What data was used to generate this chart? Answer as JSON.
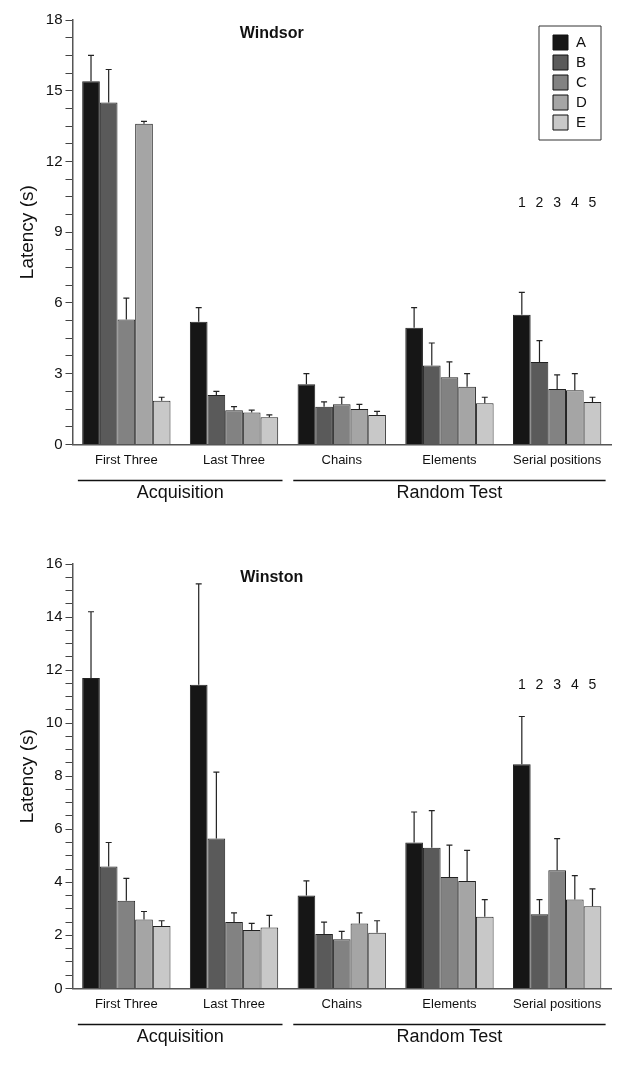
{
  "chart_data": [
    {
      "type": "bar",
      "title": "Windsor",
      "ylabel": "Latency (s)",
      "categories": [
        "First Three",
        "Last Three",
        "Chains",
        "Elements",
        "Serial positions"
      ],
      "series": [
        {
          "name": "A",
          "color": "#161616",
          "values": [
            15.4,
            5.2,
            2.55,
            4.95,
            5.5
          ],
          "errors": [
            [
              15.4,
              16.5
            ],
            [
              5.2,
              5.8
            ],
            [
              2.55,
              3.0
            ],
            [
              4.95,
              5.8
            ],
            [
              5.5,
              6.45
            ]
          ]
        },
        {
          "name": "B",
          "color": "#5a5a5a",
          "values": [
            14.5,
            2.1,
            1.6,
            3.35,
            3.5
          ],
          "errors": [
            [
              14.5,
              15.9
            ],
            [
              2.1,
              2.25
            ],
            [
              1.6,
              1.8
            ],
            [
              3.35,
              4.3
            ],
            [
              3.5,
              4.4
            ]
          ]
        },
        {
          "name": "C",
          "color": "#828282",
          "values": [
            5.3,
            1.45,
            1.7,
            2.85,
            2.35
          ],
          "errors": [
            [
              5.3,
              6.2
            ],
            [
              1.45,
              1.6
            ],
            [
              1.7,
              2.0
            ],
            [
              2.85,
              3.5
            ],
            [
              2.35,
              2.95
            ]
          ]
        },
        {
          "name": "D",
          "color": "#a5a5a5",
          "values": [
            13.6,
            1.35,
            1.5,
            2.45,
            2.3
          ],
          "errors": [
            [
              13.6,
              13.7
            ],
            [
              1.35,
              1.45
            ],
            [
              1.5,
              1.7
            ],
            [
              2.45,
              3.0
            ],
            [
              2.3,
              3.0
            ]
          ]
        },
        {
          "name": "E",
          "color": "#c8c8c8",
          "values": [
            1.85,
            1.15,
            1.25,
            1.75,
            1.8
          ],
          "errors": [
            [
              1.85,
              2.0
            ],
            [
              1.15,
              1.25
            ],
            [
              1.25,
              1.4
            ],
            [
              1.75,
              2.0
            ],
            [
              1.8,
              2.0
            ]
          ]
        }
      ],
      "ylim": [
        0,
        18
      ],
      "yticks": [
        0,
        {
          "value": 0.75,
          "label": null
        },
        {
          "value": 1.5,
          "label": null
        },
        {
          "value": 2.25,
          "label": null
        },
        3,
        {
          "value": 3.75,
          "label": null
        },
        {
          "value": 4.5,
          "label": null
        },
        {
          "value": 5.25,
          "label": null
        },
        6,
        {
          "value": 6.75,
          "label": null
        },
        {
          "value": 7.5,
          "label": null
        },
        {
          "value": 8.25,
          "label": null
        },
        9,
        {
          "value": 9.75,
          "label": null
        },
        {
          "value": 10.5,
          "label": null
        },
        {
          "value": 11.25,
          "label": null
        },
        12,
        {
          "value": 12.75,
          "label": null
        },
        {
          "value": 13.5,
          "label": null
        },
        {
          "value": 14.25,
          "label": null
        },
        15,
        {
          "value": 15.75,
          "label": null
        },
        {
          "value": 16.5,
          "label": null
        },
        {
          "value": 17.25,
          "label": null
        },
        18
      ],
      "annotations": [
        "Acquisition",
        "Random Test",
        "1 2 3 4 5"
      ],
      "legend": "top right",
      "grid": false
    },
    {
      "type": "bar",
      "title": "Winston",
      "ylabel": "Latency (s)",
      "categories": [
        "First Three",
        "Last Three",
        "Chains",
        "Elements",
        "Serial positions"
      ],
      "series": [
        {
          "color": "#161616",
          "values": [
            11.7,
            11.45,
            3.5,
            5.5,
            8.45
          ],
          "errors": [
            [
              11.7,
              14.2
            ],
            [
              11.45,
              15.25
            ],
            [
              3.5,
              4.05
            ],
            [
              5.5,
              6.65
            ],
            [
              8.45,
              10.25
            ]
          ]
        },
        {
          "color": "#5a5a5a",
          "values": [
            4.6,
            5.65,
            2.05,
            5.3,
            2.8
          ],
          "errors": [
            [
              4.6,
              5.5
            ],
            [
              5.65,
              8.15
            ],
            [
              2.05,
              2.5
            ],
            [
              5.3,
              6.7
            ],
            [
              2.8,
              3.35
            ]
          ]
        },
        {
          "color": "#828282",
          "values": [
            3.3,
            2.5,
            1.85,
            4.2,
            4.45
          ],
          "errors": [
            [
              3.3,
              4.15
            ],
            [
              2.5,
              2.85
            ],
            [
              1.85,
              2.15
            ],
            [
              4.2,
              5.4
            ],
            [
              4.45,
              5.65
            ]
          ]
        },
        {
          "color": "#a5a5a5",
          "values": [
            2.6,
            2.2,
            2.45,
            4.05,
            3.35
          ],
          "errors": [
            [
              2.6,
              2.9
            ],
            [
              2.2,
              2.45
            ],
            [
              2.45,
              2.85
            ],
            [
              4.05,
              5.2
            ],
            [
              3.35,
              4.25
            ]
          ]
        },
        {
          "color": "#c8c8c8",
          "values": [
            2.35,
            2.3,
            2.1,
            2.7,
            3.1
          ],
          "errors": [
            [
              2.35,
              2.55
            ],
            [
              2.3,
              2.75
            ],
            [
              2.1,
              2.55
            ],
            [
              2.7,
              3.35
            ],
            [
              3.1,
              3.75
            ]
          ]
        }
      ],
      "ylim": [
        0,
        16
      ],
      "yticks": [
        0,
        {
          "value": 0.5,
          "label": null
        },
        {
          "value": 1,
          "label": null
        },
        {
          "value": 1.5,
          "label": null
        },
        2,
        {
          "value": 2.5,
          "label": null
        },
        {
          "value": 3,
          "label": null
        },
        {
          "value": 3.5,
          "label": null
        },
        4,
        {
          "value": 4.5,
          "label": null
        },
        {
          "value": 5,
          "label": null
        },
        {
          "value": 5.5,
          "label": null
        },
        6,
        {
          "value": 6.5,
          "label": null
        },
        {
          "value": 7,
          "label": null
        },
        {
          "value": 7.5,
          "label": null
        },
        8,
        {
          "value": 8.5,
          "label": null
        },
        {
          "value": 9,
          "label": null
        },
        {
          "value": 9.5,
          "label": null
        },
        10,
        {
          "value": 10.5,
          "label": null
        },
        {
          "value": 11,
          "label": null
        },
        {
          "value": 11.5,
          "label": null
        },
        12,
        {
          "value": 12.5,
          "label": null
        },
        {
          "value": 13,
          "label": null
        },
        {
          "value": 13.5,
          "label": null
        },
        14,
        {
          "value": 14.5,
          "label": null
        },
        {
          "value": 15,
          "label": null
        },
        {
          "value": 15.5,
          "label": null
        },
        16
      ],
      "annotations": [
        "Acquisition",
        "Random Test",
        "1 2 3 4 5"
      ],
      "legend": false,
      "grid": false
    }
  ]
}
